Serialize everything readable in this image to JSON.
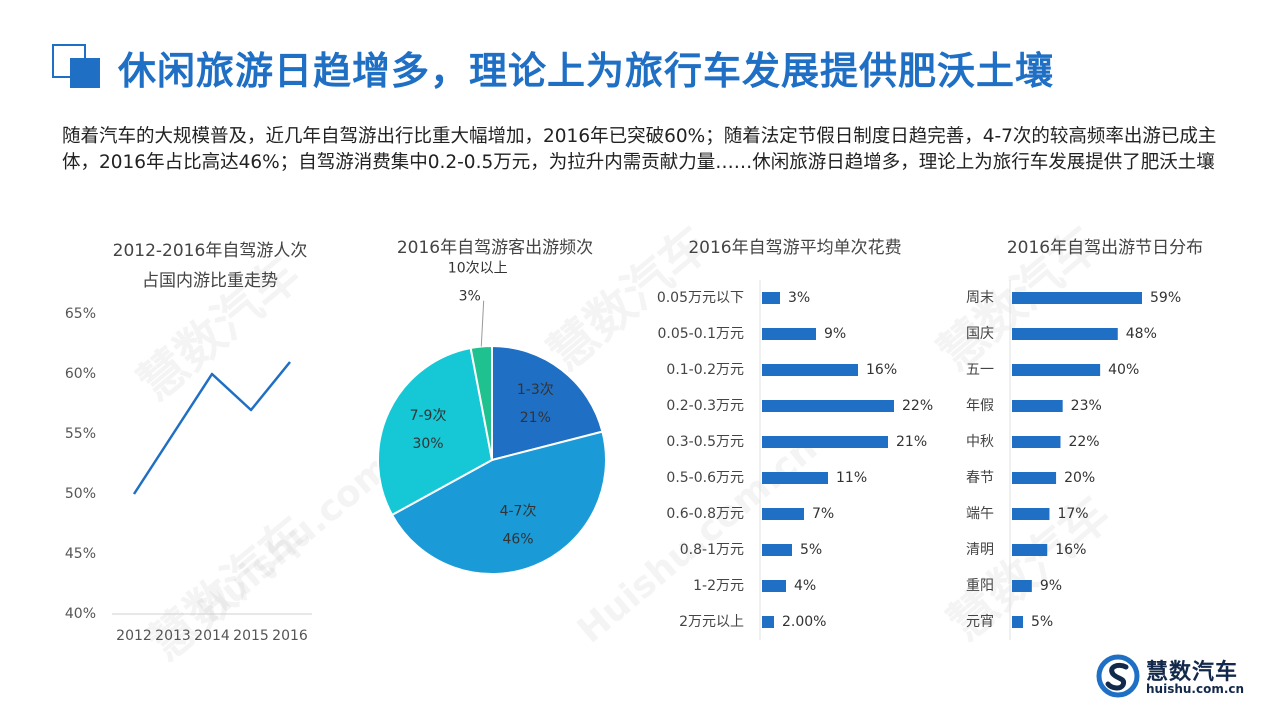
{
  "page": {
    "title": "休闲旅游日趋增多，理论上为旅行车发展提供肥沃土壤",
    "intro": "随着汽车的大规模普及，近几年自驾游出行比重大幅增加，2016年已突破60%；随着法定节假日制度日趋完善，4-7次的较高频率出游已成主体，2016年占比高达46%；自驾游消费集中0.2-0.5万元，为拉升内需贡献力量……休闲旅游日趋增多，理论上为旅行车发展提供了肥沃土壤"
  },
  "colors": {
    "accent": "#1f6fc5",
    "line": "#1f6fc5",
    "bar": "#1f6fc5",
    "pie": [
      "#1f6fc5",
      "#1a9bd7",
      "#16c8d6",
      "#1fc28f"
    ]
  },
  "watermark": {
    "text": "慧数汽车",
    "url": "Huishu.com.cn"
  },
  "brand": {
    "name": "慧数汽车",
    "url": "huishu.com.cn",
    "icon": "huishu-logo-icon"
  },
  "chart_data": [
    {
      "type": "line",
      "title": "2012-2016年自驾游人次\n占国内游比重走势",
      "x": [
        "2012",
        "2013",
        "2014",
        "2015",
        "2016"
      ],
      "series": [
        {
          "values": [
            50,
            55,
            60,
            57,
            61
          ]
        }
      ],
      "ylim": [
        40,
        65
      ],
      "yticks": [
        65,
        60,
        55,
        50,
        45,
        40
      ],
      "ytick_labels": [
        "65%",
        "60%",
        "55%",
        "50%",
        "45%",
        "40%"
      ],
      "grid": false
    },
    {
      "type": "pie",
      "title": "2016年自驾游客出游频次",
      "slices": [
        {
          "label": "1-3次",
          "value": 21,
          "value_label": "21%"
        },
        {
          "label": "4-7次",
          "value": 46,
          "value_label": "46%"
        },
        {
          "label": "7-9次",
          "value": 30,
          "value_label": "30%"
        },
        {
          "label": "10次以上",
          "value": 3,
          "value_label": "3%"
        }
      ]
    },
    {
      "type": "bar",
      "orientation": "horizontal",
      "title": "2016年自驾游平均单次花费",
      "categories": [
        "0.05万元以下",
        "0.05-0.1万元",
        "0.1-0.2万元",
        "0.2-0.3万元",
        "0.3-0.5万元",
        "0.5-0.6万元",
        "0.6-0.8万元",
        "0.8-1万元",
        "1-2万元",
        "2万元以上"
      ],
      "values": [
        3,
        9,
        16,
        22,
        21,
        11,
        7,
        5,
        4,
        2
      ],
      "value_labels": [
        "3%",
        "9%",
        "16%",
        "22%",
        "21%",
        "11%",
        "7%",
        "5%",
        "4%",
        "2.00%"
      ],
      "xlim": [
        0,
        22
      ]
    },
    {
      "type": "bar",
      "orientation": "horizontal",
      "title": "2016年自驾出游节日分布",
      "categories": [
        "周末",
        "国庆",
        "五一",
        "年假",
        "中秋",
        "春节",
        "端午",
        "清明",
        "重阳",
        "元宵"
      ],
      "values": [
        59,
        48,
        40,
        23,
        22,
        20,
        17,
        16,
        9,
        5
      ],
      "value_labels": [
        "59%",
        "48%",
        "40%",
        "23%",
        "22%",
        "20%",
        "17%",
        "16%",
        "9%",
        "5%"
      ],
      "xlim": [
        0,
        59
      ]
    }
  ]
}
